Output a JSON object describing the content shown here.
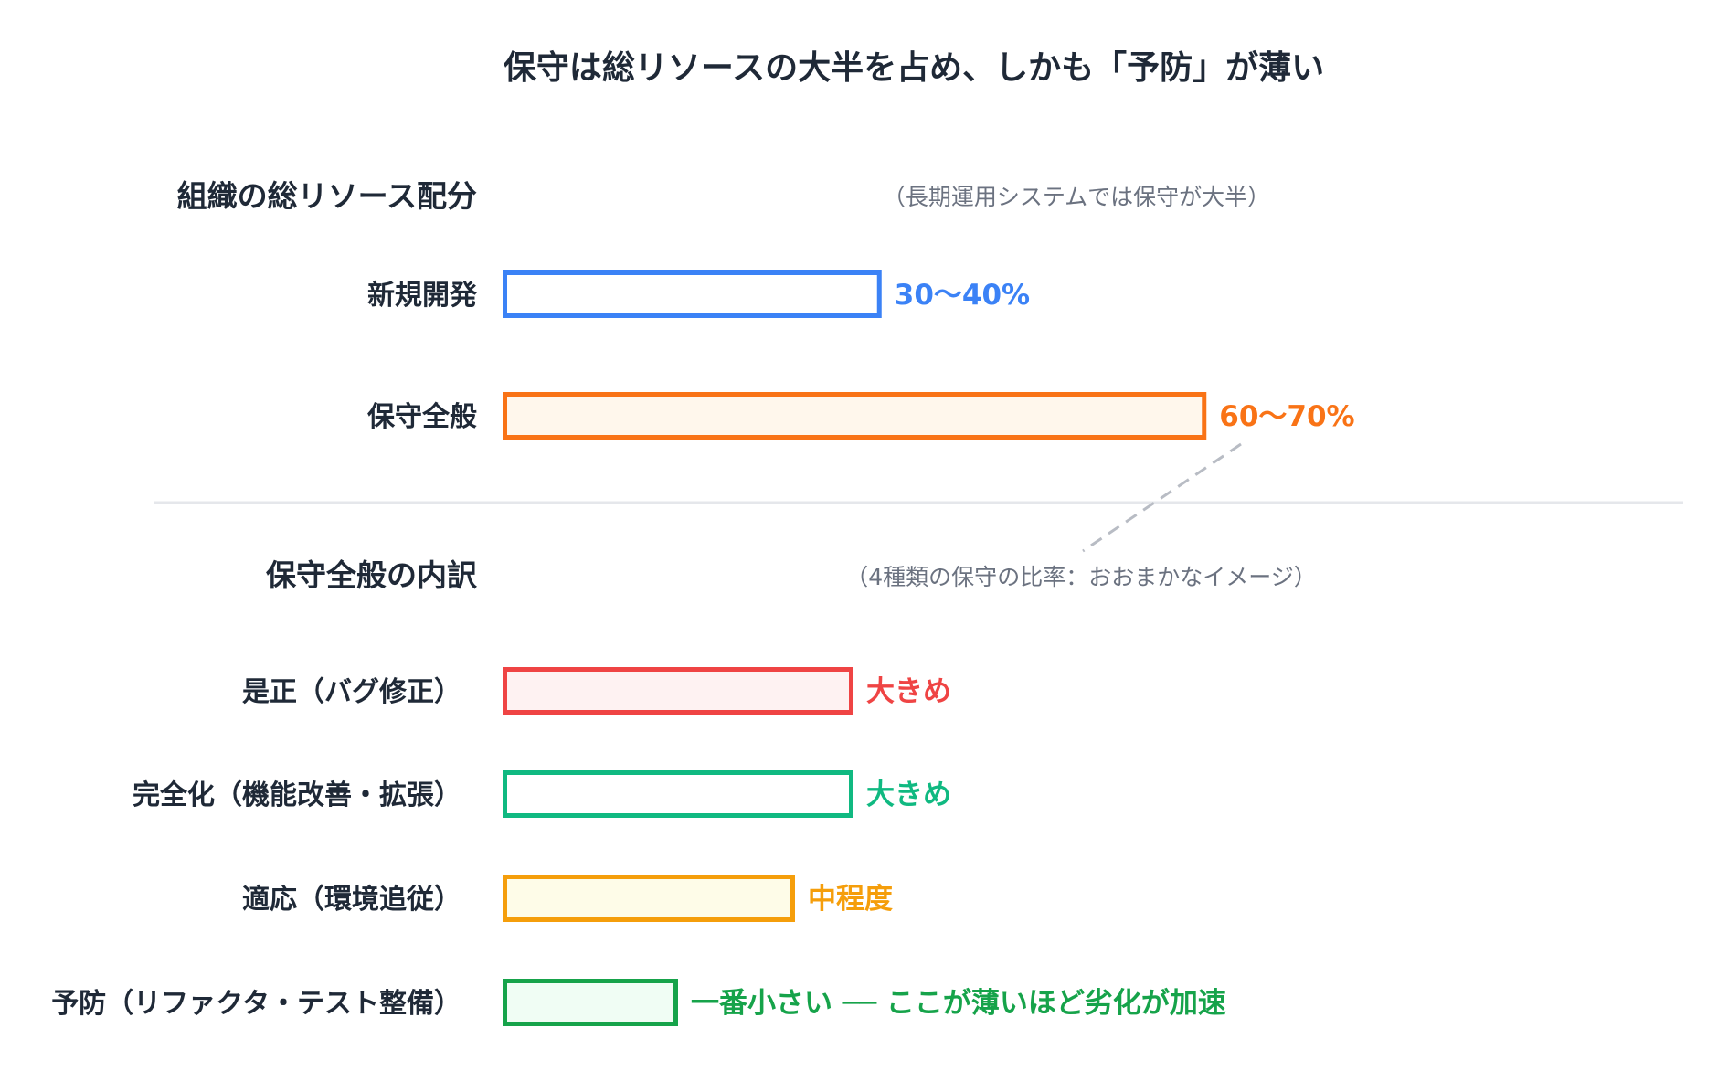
{
  "chart_data": {
    "type": "bar",
    "title": "保守は総リソースの大半を占め、しかも「予防」が薄い",
    "groups": [
      {
        "heading": "組織の総リソース配分",
        "note": "（長期運用システムでは保守が大半）",
        "items": [
          {
            "label": "新規開発",
            "value": 35,
            "value_label": "30〜40%",
            "color": "#3b82f6",
            "fill": "#ffffff"
          },
          {
            "label": "保守全般",
            "value": 65,
            "value_label": "60〜70%",
            "color": "#f97316",
            "fill": "#fff7ec"
          }
        ]
      },
      {
        "heading": "保守全般の内訳",
        "note": "（4種類の保守の比率：おおまかなイメージ）",
        "items": [
          {
            "label": "是正（バグ修正）",
            "value": 3,
            "value_label": "大きめ",
            "color": "#ef4444",
            "fill": "#fef2f2"
          },
          {
            "label": "完全化（機能改善・拡張）",
            "value": 3,
            "value_label": "大きめ",
            "color": "#10b981",
            "fill": "#ffffff"
          },
          {
            "label": "適応（環境追従）",
            "value": 2.5,
            "value_label": "中程度",
            "color": "#f59e0b",
            "fill": "#fefce8"
          },
          {
            "label": "予防（リファクタ・テスト整備）",
            "value": 1.5,
            "value_label": "一番小さい ── ここが薄いほど劣化が加速",
            "color": "#16a34a",
            "fill": "#f0fdf4"
          }
        ]
      }
    ]
  }
}
